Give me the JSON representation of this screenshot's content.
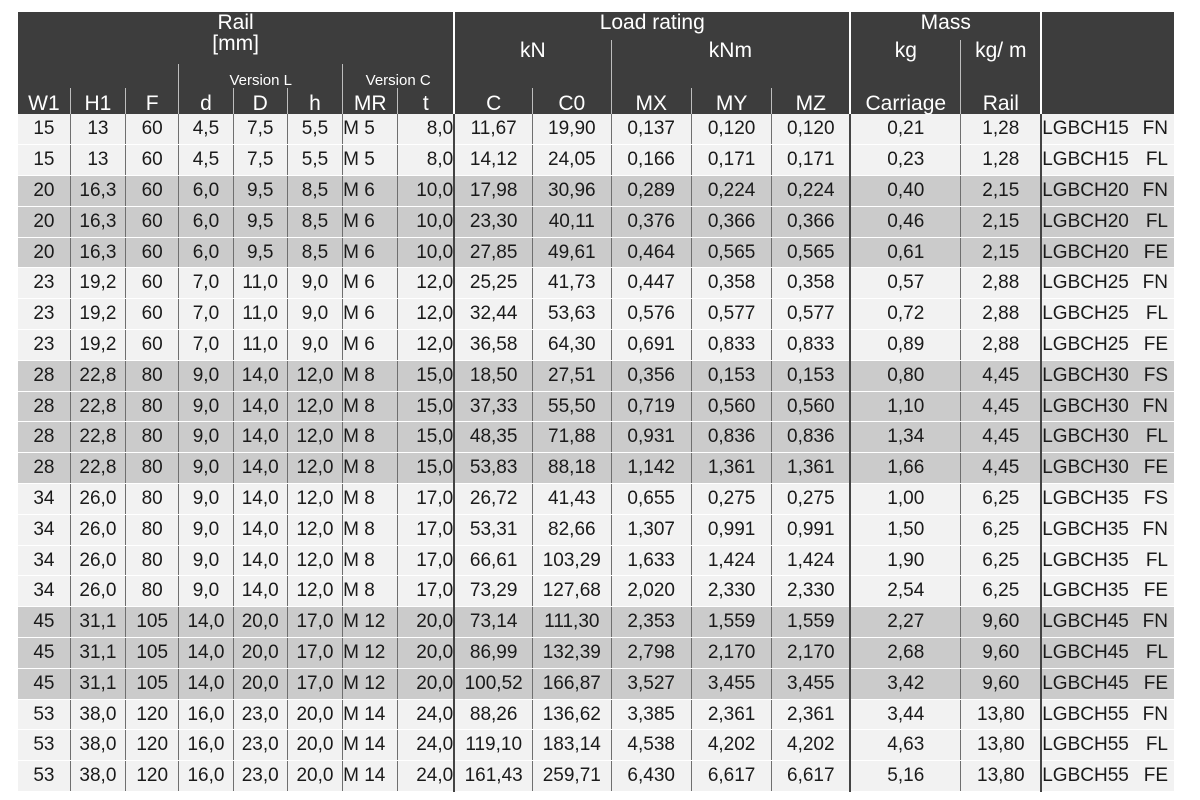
{
  "table": {
    "groups": {
      "rail_title": "Rail",
      "rail_unit": "[mm]",
      "load_title": "Load rating",
      "load_unit_kn": "kN",
      "load_unit_knm": "kNm",
      "mass_title": "Mass",
      "mass_unit_kg": "kg",
      "mass_unit_kgm": "kg/ m",
      "version_l": "Version L",
      "version_c": "Version C"
    },
    "columns": [
      "W1",
      "H1",
      "F",
      "d",
      "D",
      "h",
      "MR",
      "t",
      "C",
      "C0",
      "MX",
      "MY",
      "MZ",
      "Carriage",
      "Rail"
    ],
    "rows": [
      {
        "shade": "light",
        "cells": [
          "15",
          "13",
          "60",
          "4,5",
          "7,5",
          "5,5",
          "M 5",
          "8,0",
          "11,67",
          "19,90",
          "0,137",
          "0,120",
          "0,120",
          "0,21",
          "1,28"
        ],
        "product": "LGBCH15",
        "suffix": "FN"
      },
      {
        "shade": "light",
        "cells": [
          "15",
          "13",
          "60",
          "4,5",
          "7,5",
          "5,5",
          "M 5",
          "8,0",
          "14,12",
          "24,05",
          "0,166",
          "0,171",
          "0,171",
          "0,23",
          "1,28"
        ],
        "product": "LGBCH15",
        "suffix": "FL"
      },
      {
        "shade": "dark",
        "cells": [
          "20",
          "16,3",
          "60",
          "6,0",
          "9,5",
          "8,5",
          "M 6",
          "10,0",
          "17,98",
          "30,96",
          "0,289",
          "0,224",
          "0,224",
          "0,40",
          "2,15"
        ],
        "product": "LGBCH20",
        "suffix": "FN"
      },
      {
        "shade": "dark",
        "cells": [
          "20",
          "16,3",
          "60",
          "6,0",
          "9,5",
          "8,5",
          "M 6",
          "10,0",
          "23,30",
          "40,11",
          "0,376",
          "0,366",
          "0,366",
          "0,46",
          "2,15"
        ],
        "product": "LGBCH20",
        "suffix": "FL"
      },
      {
        "shade": "dark",
        "cells": [
          "20",
          "16,3",
          "60",
          "6,0",
          "9,5",
          "8,5",
          "M 6",
          "10,0",
          "27,85",
          "49,61",
          "0,464",
          "0,565",
          "0,565",
          "0,61",
          "2,15"
        ],
        "product": "LGBCH20",
        "suffix": "FE"
      },
      {
        "shade": "light",
        "cells": [
          "23",
          "19,2",
          "60",
          "7,0",
          "11,0",
          "9,0",
          "M 6",
          "12,0",
          "25,25",
          "41,73",
          "0,447",
          "0,358",
          "0,358",
          "0,57",
          "2,88"
        ],
        "product": "LGBCH25",
        "suffix": "FN"
      },
      {
        "shade": "light",
        "cells": [
          "23",
          "19,2",
          "60",
          "7,0",
          "11,0",
          "9,0",
          "M 6",
          "12,0",
          "32,44",
          "53,63",
          "0,576",
          "0,577",
          "0,577",
          "0,72",
          "2,88"
        ],
        "product": "LGBCH25",
        "suffix": "FL"
      },
      {
        "shade": "light",
        "cells": [
          "23",
          "19,2",
          "60",
          "7,0",
          "11,0",
          "9,0",
          "M 6",
          "12,0",
          "36,58",
          "64,30",
          "0,691",
          "0,833",
          "0,833",
          "0,89",
          "2,88"
        ],
        "product": "LGBCH25",
        "suffix": "FE"
      },
      {
        "shade": "dark",
        "cells": [
          "28",
          "22,8",
          "80",
          "9,0",
          "14,0",
          "12,0",
          "M 8",
          "15,0",
          "18,50",
          "27,51",
          "0,356",
          "0,153",
          "0,153",
          "0,80",
          "4,45"
        ],
        "product": "LGBCH30",
        "suffix": "FS"
      },
      {
        "shade": "dark",
        "cells": [
          "28",
          "22,8",
          "80",
          "9,0",
          "14,0",
          "12,0",
          "M 8",
          "15,0",
          "37,33",
          "55,50",
          "0,719",
          "0,560",
          "0,560",
          "1,10",
          "4,45"
        ],
        "product": "LGBCH30",
        "suffix": "FN"
      },
      {
        "shade": "dark",
        "cells": [
          "28",
          "22,8",
          "80",
          "9,0",
          "14,0",
          "12,0",
          "M 8",
          "15,0",
          "48,35",
          "71,88",
          "0,931",
          "0,836",
          "0,836",
          "1,34",
          "4,45"
        ],
        "product": "LGBCH30",
        "suffix": "FL"
      },
      {
        "shade": "dark",
        "cells": [
          "28",
          "22,8",
          "80",
          "9,0",
          "14,0",
          "12,0",
          "M 8",
          "15,0",
          "53,83",
          "88,18",
          "1,142",
          "1,361",
          "1,361",
          "1,66",
          "4,45"
        ],
        "product": "LGBCH30",
        "suffix": "FE"
      },
      {
        "shade": "light",
        "cells": [
          "34",
          "26,0",
          "80",
          "9,0",
          "14,0",
          "12,0",
          "M 8",
          "17,0",
          "26,72",
          "41,43",
          "0,655",
          "0,275",
          "0,275",
          "1,00",
          "6,25"
        ],
        "product": "LGBCH35",
        "suffix": "FS"
      },
      {
        "shade": "light",
        "cells": [
          "34",
          "26,0",
          "80",
          "9,0",
          "14,0",
          "12,0",
          "M 8",
          "17,0",
          "53,31",
          "82,66",
          "1,307",
          "0,991",
          "0,991",
          "1,50",
          "6,25"
        ],
        "product": "LGBCH35",
        "suffix": "FN"
      },
      {
        "shade": "light",
        "cells": [
          "34",
          "26,0",
          "80",
          "9,0",
          "14,0",
          "12,0",
          "M 8",
          "17,0",
          "66,61",
          "103,29",
          "1,633",
          "1,424",
          "1,424",
          "1,90",
          "6,25"
        ],
        "product": "LGBCH35",
        "suffix": "FL"
      },
      {
        "shade": "light",
        "cells": [
          "34",
          "26,0",
          "80",
          "9,0",
          "14,0",
          "12,0",
          "M 8",
          "17,0",
          "73,29",
          "127,68",
          "2,020",
          "2,330",
          "2,330",
          "2,54",
          "6,25"
        ],
        "product": "LGBCH35",
        "suffix": "FE"
      },
      {
        "shade": "dark",
        "cells": [
          "45",
          "31,1",
          "105",
          "14,0",
          "20,0",
          "17,0",
          "M 12",
          "20,0",
          "73,14",
          "111,30",
          "2,353",
          "1,559",
          "1,559",
          "2,27",
          "9,60"
        ],
        "product": "LGBCH45",
        "suffix": "FN"
      },
      {
        "shade": "dark",
        "cells": [
          "45",
          "31,1",
          "105",
          "14,0",
          "20,0",
          "17,0",
          "M 12",
          "20,0",
          "86,99",
          "132,39",
          "2,798",
          "2,170",
          "2,170",
          "2,68",
          "9,60"
        ],
        "product": "LGBCH45",
        "suffix": "FL"
      },
      {
        "shade": "dark",
        "cells": [
          "45",
          "31,1",
          "105",
          "14,0",
          "20,0",
          "17,0",
          "M 12",
          "20,0",
          "100,52",
          "166,87",
          "3,527",
          "3,455",
          "3,455",
          "3,42",
          "9,60"
        ],
        "product": "LGBCH45",
        "suffix": "FE"
      },
      {
        "shade": "light",
        "cells": [
          "53",
          "38,0",
          "120",
          "16,0",
          "23,0",
          "20,0",
          "M 14",
          "24,0",
          "88,26",
          "136,62",
          "3,385",
          "2,361",
          "2,361",
          "3,44",
          "13,80"
        ],
        "product": "LGBCH55",
        "suffix": "FN"
      },
      {
        "shade": "light",
        "cells": [
          "53",
          "38,0",
          "120",
          "16,0",
          "23,0",
          "20,0",
          "M 14",
          "24,0",
          "119,10",
          "183,14",
          "4,538",
          "4,202",
          "4,202",
          "4,63",
          "13,80"
        ],
        "product": "LGBCH55",
        "suffix": "FL"
      },
      {
        "shade": "light",
        "cells": [
          "53",
          "38,0",
          "120",
          "16,0",
          "23,0",
          "20,0",
          "M 14",
          "24,0",
          "161,43",
          "259,71",
          "6,430",
          "6,617",
          "6,617",
          "5,16",
          "13,80"
        ],
        "product": "LGBCH55",
        "suffix": "FE"
      }
    ]
  }
}
